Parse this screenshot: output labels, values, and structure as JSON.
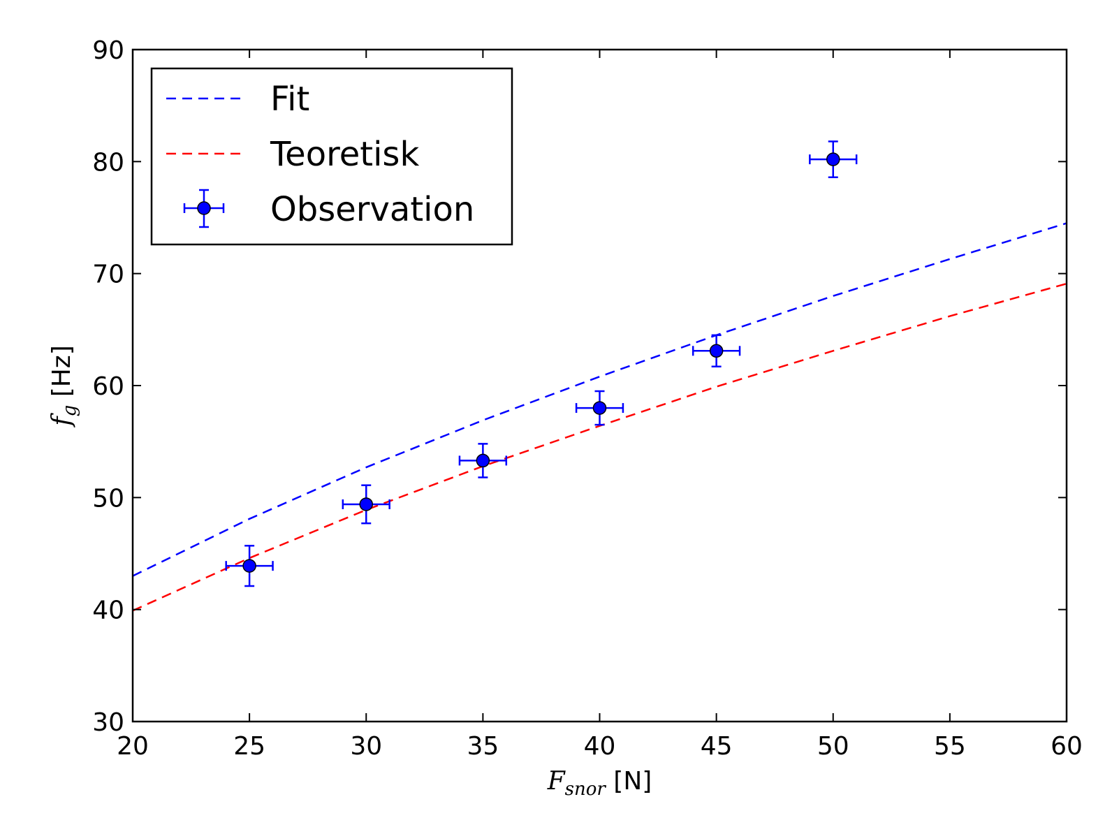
{
  "chart_data": {
    "type": "scatter",
    "xlabel": {
      "symbol": "F",
      "subscript": "snor",
      "unit": " [N]"
    },
    "ylabel": {
      "symbol": "f",
      "subscript": "g",
      "unit": " [Hz]"
    },
    "xlim": [
      20,
      60
    ],
    "ylim": [
      30,
      90
    ],
    "xticks": [
      20,
      25,
      30,
      35,
      40,
      45,
      50,
      55,
      60
    ],
    "yticks": [
      30,
      40,
      50,
      60,
      70,
      80,
      90
    ],
    "grid": false,
    "legend_position": "top-left",
    "series": [
      {
        "name": "Fit",
        "kind": "dashed-line",
        "color": "#0000ff",
        "x": [
          20,
          25,
          30,
          35,
          40,
          45,
          50,
          55,
          60
        ],
        "y": [
          43.0,
          48.1,
          52.7,
          56.9,
          60.8,
          64.5,
          68.0,
          71.3,
          74.5
        ]
      },
      {
        "name": "Teoretisk",
        "kind": "dashed-line",
        "color": "#ff0000",
        "x": [
          20,
          25,
          30,
          35,
          40,
          45,
          50,
          55,
          60
        ],
        "y": [
          39.9,
          44.6,
          48.9,
          52.8,
          56.4,
          59.9,
          63.1,
          66.2,
          69.1
        ]
      },
      {
        "name": "Observation",
        "kind": "errorbar",
        "color": "#0000ff",
        "x": [
          25,
          30,
          35,
          40,
          45,
          50
        ],
        "y": [
          43.9,
          49.4,
          53.3,
          58.0,
          63.1,
          80.2
        ],
        "xerr": [
          1.0,
          1.0,
          1.0,
          1.0,
          1.0,
          1.0
        ],
        "yerr": [
          1.8,
          1.7,
          1.5,
          1.5,
          1.4,
          1.6
        ]
      }
    ]
  }
}
